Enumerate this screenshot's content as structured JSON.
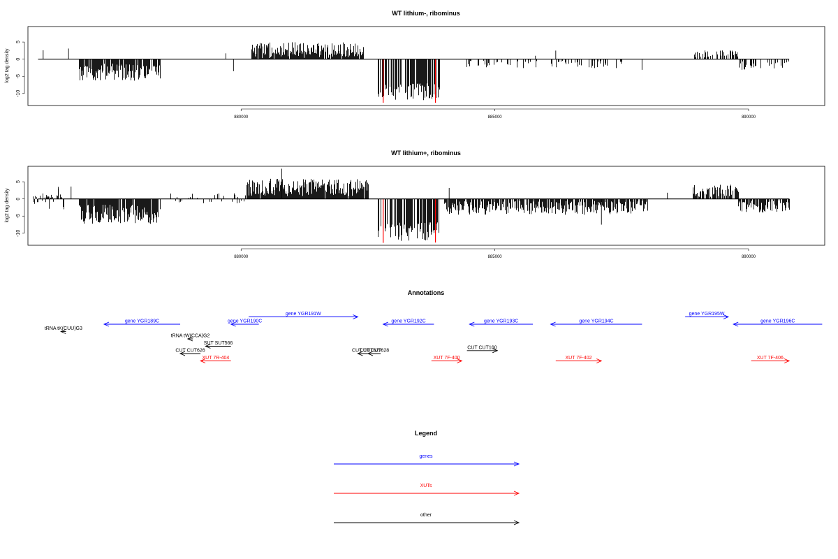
{
  "colors": {
    "gene": "#0000ff",
    "xut": "#ff0000",
    "other": "#000000",
    "highlight": "#ff0000"
  },
  "chart_data": [
    {
      "type": "bar",
      "title": "WT lithium-, ribominus",
      "ylabel": "log2 tag density",
      "xlim": [
        875800,
        891500
      ],
      "ylim": [
        -13.5,
        9.5
      ],
      "yticks": [
        5,
        0,
        -5,
        -10
      ],
      "xticks": [
        880000,
        885000,
        890000
      ],
      "xtick_labels": [
        "880000",
        "885000",
        "890000"
      ],
      "segments": [
        {
          "from": 876800,
          "to": 878400,
          "mean": -3.8,
          "amp": 2.5,
          "sign": -1,
          "density": 0.85
        },
        {
          "from": 880200,
          "to": 882400,
          "mean": 2.6,
          "amp": 2.4,
          "sign": 1,
          "density": 0.95
        },
        {
          "from": 882700,
          "to": 883900,
          "mean": -9.5,
          "amp": 2.5,
          "sign": -1,
          "density": 0.7
        },
        {
          "from": 884400,
          "to": 887500,
          "mean": -1.4,
          "amp": 1.2,
          "sign": -1,
          "density": 0.25
        },
        {
          "from": 888900,
          "to": 889800,
          "mean": 1.9,
          "amp": 1.4,
          "sign": 1,
          "density": 0.5
        },
        {
          "from": 889800,
          "to": 890800,
          "mean": -1.8,
          "amp": 1.4,
          "sign": -1,
          "density": 0.45
        }
      ],
      "highlights": [
        {
          "x": 882800,
          "y": -12.7
        },
        {
          "x": 883830,
          "y": -12.7
        }
      ],
      "spikes": [
        {
          "x": 876100,
          "y": 2.6
        },
        {
          "x": 876600,
          "y": 3.1
        },
        {
          "x": 879700,
          "y": 1.7
        },
        {
          "x": 879850,
          "y": -3.5
        },
        {
          "x": 886200,
          "y": 2.5
        },
        {
          "x": 885800,
          "y": 1.0
        },
        {
          "x": 887900,
          "y": -3.1
        }
      ]
    },
    {
      "type": "bar",
      "title": "WT lithium+, ribominus",
      "ylabel": "log2 tag density",
      "xlim": [
        875800,
        891500
      ],
      "ylim": [
        -13.5,
        9.5
      ],
      "yticks": [
        5,
        0,
        -5,
        -10
      ],
      "xticks": [
        880000,
        885000,
        890000
      ],
      "xtick_labels": [
        "880000",
        "885000",
        "890000"
      ],
      "segments": [
        {
          "from": 875900,
          "to": 876500,
          "mean": 0.6,
          "amp": 2.5,
          "sign": 0,
          "density": 0.5
        },
        {
          "from": 876800,
          "to": 878400,
          "mean": -4.5,
          "amp": 2.8,
          "sign": -1,
          "density": 0.9
        },
        {
          "from": 878500,
          "to": 880100,
          "mean": 0.0,
          "amp": 2.2,
          "sign": 0,
          "density": 0.3
        },
        {
          "from": 880100,
          "to": 882500,
          "mean": 3.3,
          "amp": 2.6,
          "sign": 1,
          "density": 0.97
        },
        {
          "from": 882700,
          "to": 883900,
          "mean": -9.5,
          "amp": 2.7,
          "sign": -1,
          "density": 0.7
        },
        {
          "from": 884000,
          "to": 888000,
          "mean": -2.6,
          "amp": 2.0,
          "sign": -1,
          "density": 0.8
        },
        {
          "from": 888900,
          "to": 889800,
          "mean": 2.4,
          "amp": 1.8,
          "sign": 1,
          "density": 0.7
        },
        {
          "from": 889800,
          "to": 890800,
          "mean": -2.3,
          "amp": 1.8,
          "sign": -1,
          "density": 0.75
        }
      ],
      "highlights": [
        {
          "x": 882800,
          "y": -12.8
        },
        {
          "x": 883830,
          "y": -12.7
        }
      ],
      "spikes": [
        {
          "x": 876400,
          "y": 3.5
        },
        {
          "x": 876650,
          "y": 3.6
        },
        {
          "x": 880800,
          "y": 8.8
        },
        {
          "x": 884100,
          "y": 3.2
        },
        {
          "x": 887100,
          "y": -7.5
        },
        {
          "x": 888400,
          "y": 1.8
        }
      ]
    }
  ],
  "annotations": {
    "title": "Annotations",
    "features": [
      {
        "label": "gene YGR189C",
        "kind": "gene",
        "strand": "-",
        "start": 877300,
        "end": 878800,
        "row": 2
      },
      {
        "label": "tRNA tK(CUU)G3",
        "kind": "other",
        "strand": "-",
        "start": 876450,
        "end": 876550,
        "row": 3
      },
      {
        "label": "tRNA tW(CCA)G2",
        "kind": "other",
        "strand": "-",
        "start": 878950,
        "end": 879050,
        "row": 4
      },
      {
        "label": "gene YGR190C",
        "kind": "gene",
        "strand": "-",
        "start": 879800,
        "end": 880350,
        "row": 2
      },
      {
        "label": "gene YGR191W",
        "kind": "gene",
        "strand": "+",
        "start": 880150,
        "end": 882300,
        "row": 1
      },
      {
        "label": "SUT SUT566",
        "kind": "other",
        "strand": "-",
        "start": 879300,
        "end": 879800,
        "row": 5
      },
      {
        "label": "CUT CUT626",
        "kind": "other",
        "strand": "-",
        "start": 878800,
        "end": 879200,
        "row": 6
      },
      {
        "label": "XUT 7R-404",
        "kind": "xut",
        "strand": "-",
        "start": 879200,
        "end": 879800,
        "row": 7
      },
      {
        "label": "gene YGR192C",
        "kind": "gene",
        "strand": "-",
        "start": 882800,
        "end": 883800,
        "row": 2
      },
      {
        "label": "CUT CUT627",
        "kind": "other",
        "strand": "-",
        "start": 882300,
        "end": 882650,
        "row": 6
      },
      {
        "label": "CUT CUT628",
        "kind": "other",
        "strand": "-",
        "start": 882500,
        "end": 882750,
        "row": 6
      },
      {
        "label": "gene YGR193C",
        "kind": "gene",
        "strand": "-",
        "start": 884500,
        "end": 885750,
        "row": 2
      },
      {
        "label": "CUT CUT160",
        "kind": "other",
        "strand": "+",
        "start": 884450,
        "end": 885050,
        "row": 5.6
      },
      {
        "label": "XUT 7F-400",
        "kind": "xut",
        "strand": "+",
        "start": 883750,
        "end": 884350,
        "row": 7
      },
      {
        "label": "gene YGR194C",
        "kind": "gene",
        "strand": "-",
        "start": 886100,
        "end": 887900,
        "row": 2
      },
      {
        "label": "XUT 7F-402",
        "kind": "xut",
        "strand": "+",
        "start": 886200,
        "end": 887100,
        "row": 7
      },
      {
        "label": "gene YGR195W",
        "kind": "gene",
        "strand": "+",
        "start": 888750,
        "end": 889600,
        "row": 1
      },
      {
        "label": "gene YGR196C",
        "kind": "gene",
        "strand": "-",
        "start": 889700,
        "end": 891450,
        "row": 2
      },
      {
        "label": "XUT 7F-406",
        "kind": "xut",
        "strand": "+",
        "start": 890050,
        "end": 890800,
        "row": 7
      }
    ]
  },
  "legend": {
    "title": "Legend",
    "entries": [
      {
        "label": "genes",
        "kind": "gene"
      },
      {
        "label": "XUTs",
        "kind": "xut"
      },
      {
        "label": "other",
        "kind": "other"
      }
    ]
  }
}
